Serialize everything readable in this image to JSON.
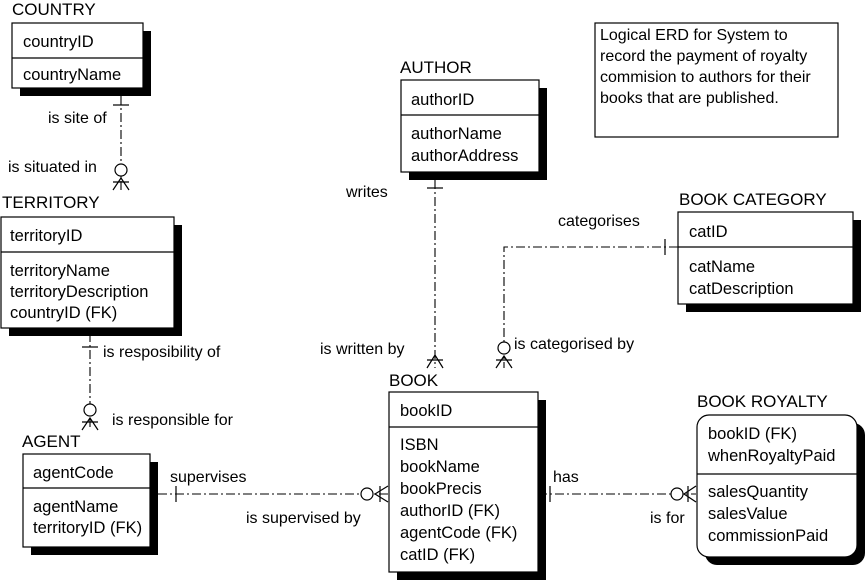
{
  "diagram": {
    "note": [
      "Logical ERD for System to",
      "record the payment of royalty",
      "commision to authors for their",
      "books that are published."
    ],
    "entities": {
      "country": {
        "title": "COUNTRY",
        "key": [
          "countryID"
        ],
        "attrs": [
          "countryName"
        ]
      },
      "territory": {
        "title": "TERRITORY",
        "key": [
          "territoryID"
        ],
        "attrs": [
          "territoryName",
          "territoryDescription",
          "countryID (FK)"
        ]
      },
      "agent": {
        "title": "AGENT",
        "key": [
          "agentCode"
        ],
        "attrs": [
          "agentName",
          "territoryID (FK)"
        ]
      },
      "author": {
        "title": "AUTHOR",
        "key": [
          "authorID"
        ],
        "attrs": [
          "authorName",
          "authorAddress"
        ]
      },
      "book": {
        "title": "BOOK",
        "key": [
          "bookID"
        ],
        "attrs": [
          "ISBN",
          "bookName",
          "bookPrecis",
          "authorID (FK)",
          "agentCode (FK)",
          "catID (FK)"
        ]
      },
      "category": {
        "title": "BOOK CATEGORY",
        "key": [
          "catID"
        ],
        "attrs": [
          "catName",
          "catDescription"
        ]
      },
      "royalty": {
        "title": "BOOK ROYALTY",
        "key": [
          "bookID (FK)",
          "whenRoyaltyPaid"
        ],
        "attrs": [
          "salesQuantity",
          "salesValue",
          "commissionPaid"
        ]
      }
    },
    "relationships": {
      "country_territory": {
        "parent_label": "is site of",
        "child_label": "is situated in"
      },
      "territory_agent": {
        "parent_label": "is resposibility of",
        "child_label": "is responsible for"
      },
      "author_book": {
        "parent_label": "writes",
        "child_label": "is written by"
      },
      "category_book": {
        "parent_label": "categorises",
        "child_label": "is categorised by"
      },
      "agent_book": {
        "parent_label": "supervises",
        "child_label": "is supervised by"
      },
      "book_royalty": {
        "parent_label": "has",
        "child_label": "is for"
      }
    }
  }
}
